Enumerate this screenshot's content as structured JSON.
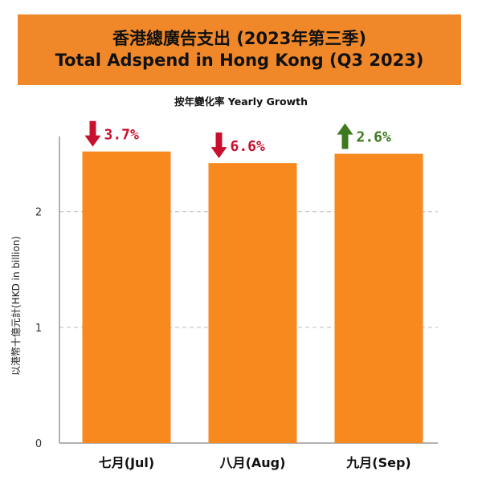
{
  "header": {
    "title_zh": "香港總廣告支出 (2023年第三季)",
    "title_en": "Total Adspend in Hong Kong (Q3 2023)",
    "subtitle": "按年變化率 Yearly Growth"
  },
  "colors": {
    "banner": "#f0882a",
    "bar": "#f7891f",
    "down": "#c8102e",
    "up": "#3d7a1f",
    "grid": "#bbbbbb"
  },
  "chart_data": {
    "type": "bar",
    "title": "香港總廣告支出 (2023年第三季) Total Adspend in Hong Kong (Q3 2023)",
    "subtitle": "按年變化率 Yearly Growth",
    "categories": [
      "七月(Jul)",
      "八月(Aug)",
      "九月(Sep)"
    ],
    "values": [
      2.52,
      2.42,
      2.5
    ],
    "ylabel": "以港幣十億元計(HKD in billion)",
    "xlabel": "",
    "ylim": [
      0,
      2.65
    ],
    "yticks": [
      0,
      1,
      2
    ],
    "grid": true,
    "annotations": [
      {
        "label": "3.7%",
        "direction": "down"
      },
      {
        "label": "6.6%",
        "direction": "down"
      },
      {
        "label": "2.6%",
        "direction": "up"
      }
    ]
  }
}
